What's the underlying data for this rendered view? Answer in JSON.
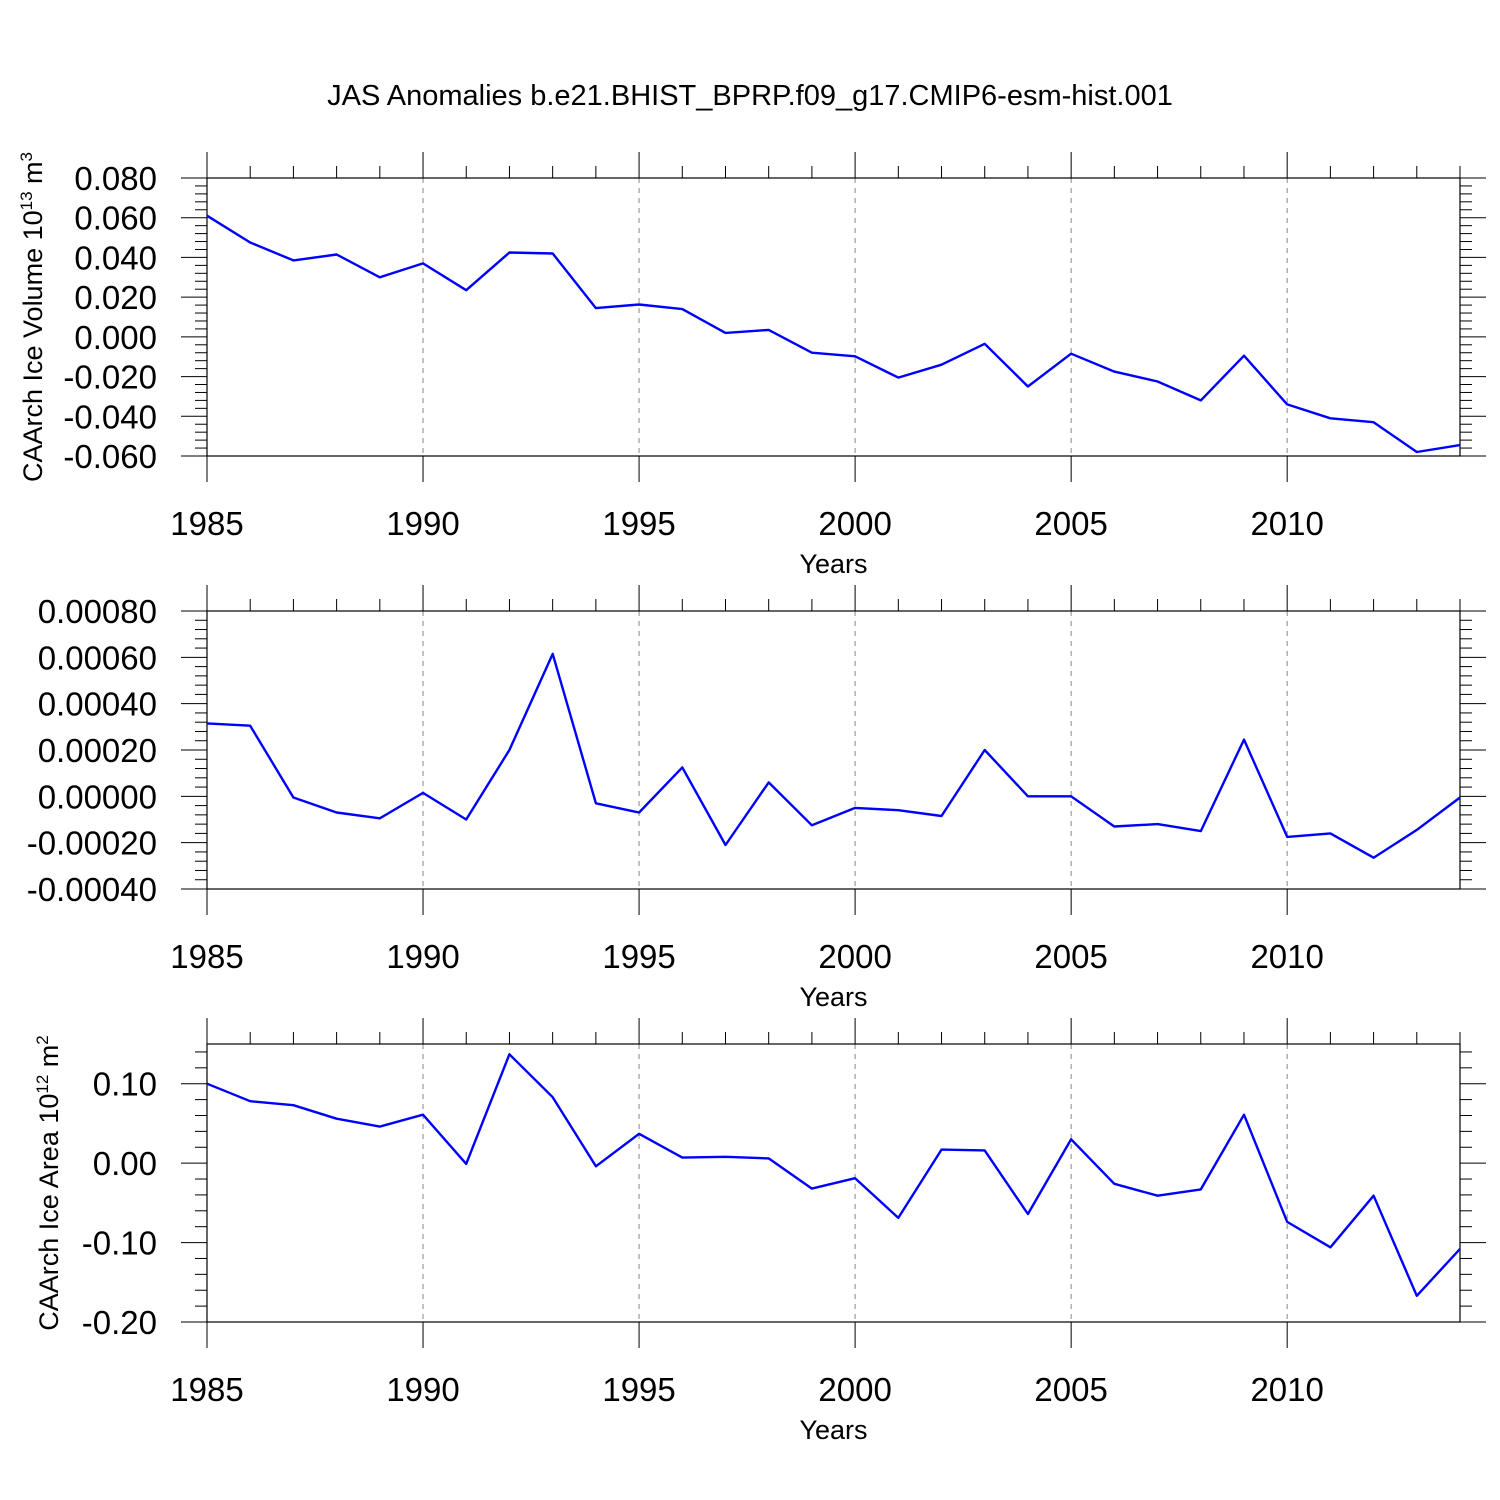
{
  "title": "JAS Anomalies b.e21.BHIST_BPRP.f09_g17.CMIP6-esm-hist.001",
  "chart_data": [
    {
      "type": "line",
      "title": "JAS Anomalies b.e21.BHIST_BPRP.f09_g17.CMIP6-esm-hist.001",
      "xlabel": "Years",
      "ylabel_main": "CAArch Ice Volume 10",
      "ylabel_sup": "13",
      "ylabel_unit": " m",
      "ylabel_unit_sup": "3",
      "xlim": [
        1985,
        2014
      ],
      "ylim": [
        -0.06,
        0.08
      ],
      "x_ticks": [
        1985,
        1990,
        1995,
        2000,
        2005,
        2010
      ],
      "x_tick_labels": [
        "1985",
        "1990",
        "1995",
        "2000",
        "2005",
        "2010"
      ],
      "y_ticks": [
        -0.06,
        -0.04,
        -0.02,
        0.0,
        0.02,
        0.04,
        0.06,
        0.08
      ],
      "y_tick_labels": [
        "-0.060",
        "-0.040",
        "-0.020",
        "0.000",
        "0.020",
        "0.040",
        "0.060",
        "0.080"
      ],
      "grid": "vertical dashed at major x ticks",
      "series_color": "#0000ff",
      "x": [
        1985,
        1986,
        1987,
        1988,
        1989,
        1990,
        1991,
        1992,
        1993,
        1994,
        1995,
        1996,
        1997,
        1998,
        1999,
        2000,
        2001,
        2002,
        2003,
        2004,
        2005,
        2006,
        2007,
        2008,
        2009,
        2010,
        2011,
        2012,
        2013,
        2014
      ],
      "values": [
        0.061,
        0.0475,
        0.0385,
        0.0415,
        0.03,
        0.037,
        0.0235,
        0.0425,
        0.042,
        0.0145,
        0.0163,
        0.014,
        0.002,
        0.0035,
        -0.008,
        -0.0098,
        -0.0205,
        -0.014,
        -0.0035,
        -0.025,
        -0.0085,
        -0.0175,
        -0.0225,
        -0.032,
        -0.0095,
        -0.034,
        -0.041,
        -0.043,
        -0.058,
        -0.0545
      ]
    },
    {
      "type": "line",
      "xlabel": "Years",
      "xlim": [
        1985,
        2014
      ],
      "ylim": [
        -0.0004,
        0.0008
      ],
      "x_ticks": [
        1985,
        1990,
        1995,
        2000,
        2005,
        2010
      ],
      "x_tick_labels": [
        "1985",
        "1990",
        "1995",
        "2000",
        "2005",
        "2010"
      ],
      "y_ticks": [
        -0.0004,
        -0.0002,
        0.0,
        0.0002,
        0.0004,
        0.0006,
        0.0008
      ],
      "y_tick_labels": [
        "-0.00040",
        "-0.00020",
        "0.00000",
        "0.00020",
        "0.00040",
        "0.00060",
        "0.00080"
      ],
      "grid": "vertical dashed at major x ticks",
      "series_color": "#0000ff",
      "x": [
        1985,
        1986,
        1987,
        1988,
        1989,
        1990,
        1991,
        1992,
        1993,
        1994,
        1995,
        1996,
        1997,
        1998,
        1999,
        2000,
        2001,
        2002,
        2003,
        2004,
        2005,
        2006,
        2007,
        2008,
        2009,
        2010,
        2011,
        2012,
        2013,
        2014
      ],
      "values": [
        0.000315,
        0.000305,
        -5e-06,
        -7e-05,
        -9.5e-05,
        1.5e-05,
        -0.0001,
        0.0002,
        0.000615,
        -3e-05,
        -7e-05,
        0.000125,
        -0.00021,
        6e-05,
        -0.000125,
        -5e-05,
        -6e-05,
        -8.5e-05,
        0.0002,
        0.0,
        0.0,
        -0.00013,
        -0.00012,
        -0.00015,
        0.000245,
        -0.000175,
        -0.00016,
        -0.000265,
        -0.000145,
        -5e-06
      ]
    },
    {
      "type": "line",
      "xlabel": "Years",
      "ylabel_main": "CAArch Ice Area 10",
      "ylabel_sup": "12",
      "ylabel_unit": " m",
      "ylabel_unit_sup": "2",
      "xlim": [
        1985,
        2014
      ],
      "ylim": [
        -0.2,
        0.15
      ],
      "x_ticks": [
        1985,
        1990,
        1995,
        2000,
        2005,
        2010
      ],
      "x_tick_labels": [
        "1985",
        "1990",
        "1995",
        "2000",
        "2005",
        "2010"
      ],
      "y_ticks": [
        -0.2,
        -0.1,
        0.0,
        0.1
      ],
      "y_tick_labels": [
        "-0.20",
        "-0.10",
        "0.00",
        "0.10"
      ],
      "grid": "vertical dashed at major x ticks",
      "series_color": "#0000ff",
      "x": [
        1985,
        1986,
        1987,
        1988,
        1989,
        1990,
        1991,
        1992,
        1993,
        1994,
        1995,
        1996,
        1997,
        1998,
        1999,
        2000,
        2001,
        2002,
        2003,
        2004,
        2005,
        2006,
        2007,
        2008,
        2009,
        2010,
        2011,
        2012,
        2013,
        2014
      ],
      "values": [
        0.1,
        0.078,
        0.073,
        0.056,
        0.046,
        0.061,
        -0.001,
        0.137,
        0.083,
        -0.004,
        0.037,
        0.007,
        0.008,
        0.006,
        -0.032,
        -0.019,
        -0.069,
        0.017,
        0.016,
        -0.064,
        0.03,
        -0.026,
        -0.041,
        -0.033,
        0.061,
        -0.074,
        -0.106,
        -0.041,
        -0.167,
        -0.108
      ]
    }
  ]
}
